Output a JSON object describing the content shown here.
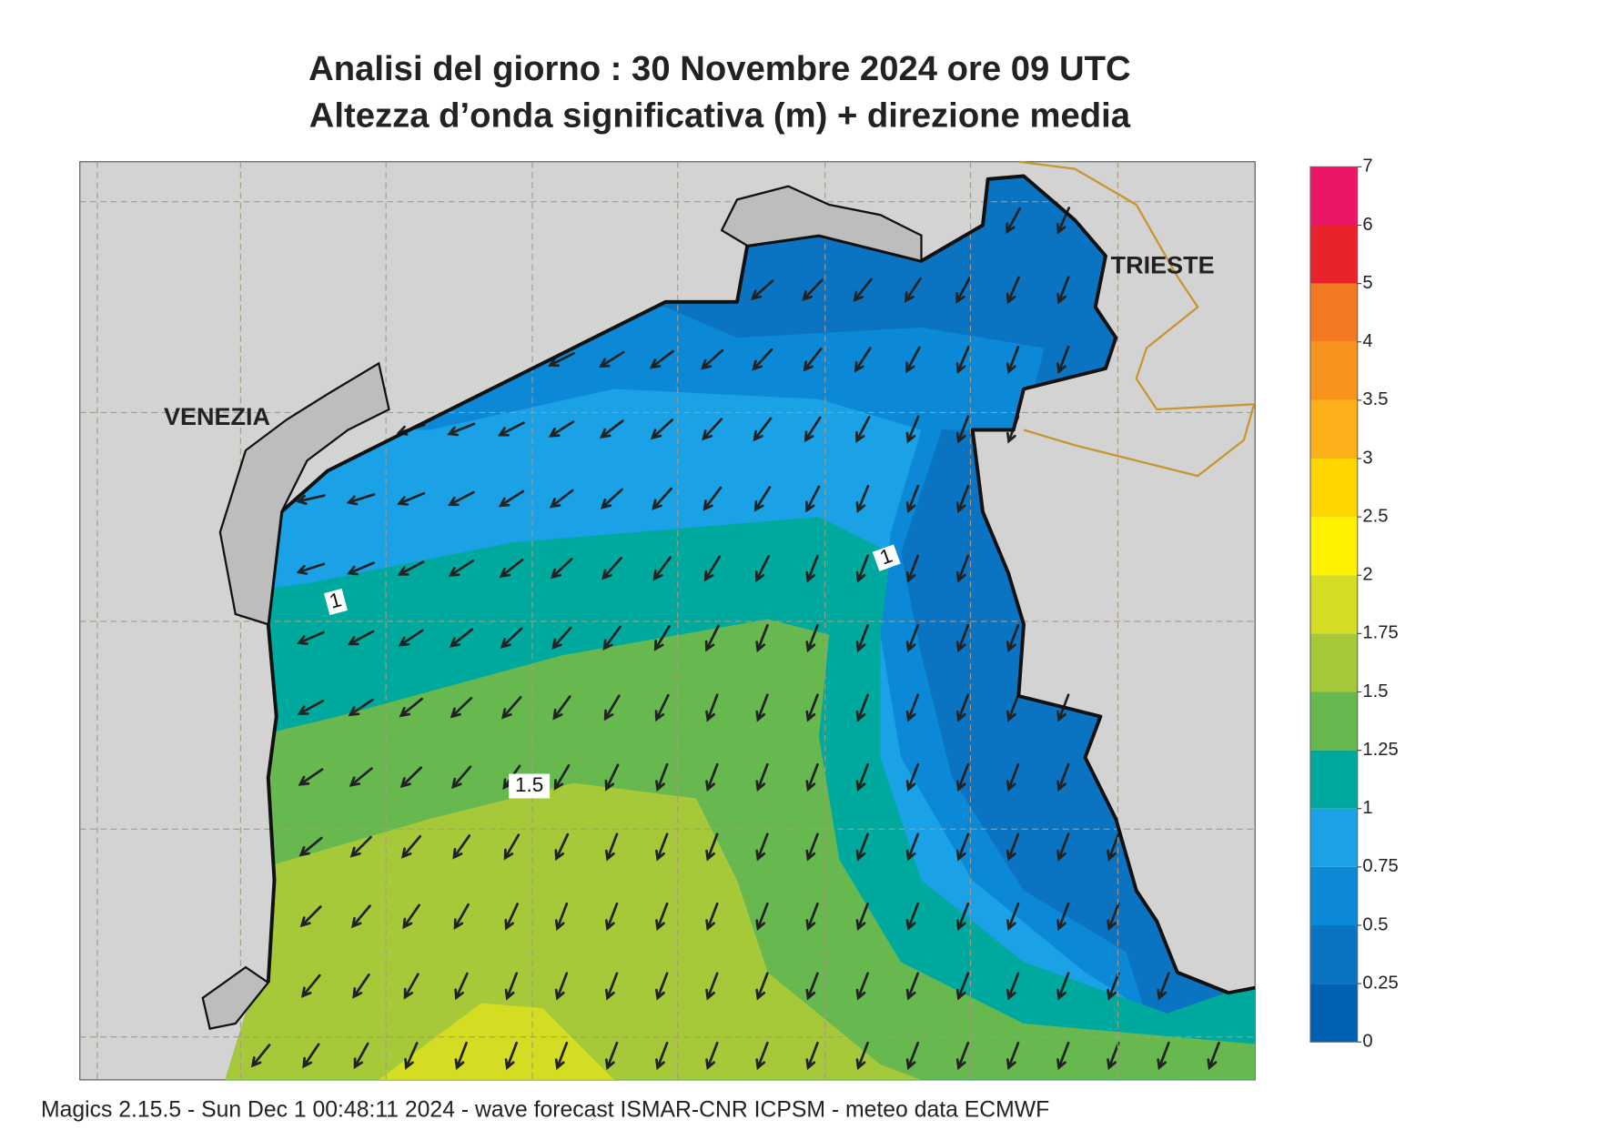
{
  "header": {
    "title": "Analisi del giorno :  30 Novembre  2024   ore 09 UTC",
    "subtitle": "Altezza d’onda significativa (m) + direzione media"
  },
  "map": {
    "places": [
      "VENEZIA",
      "TRIESTE"
    ],
    "contour_labels": [
      "1",
      "1",
      "1.5"
    ]
  },
  "colorbar": {
    "levels": [
      0,
      0.25,
      0.5,
      0.75,
      1,
      1.25,
      1.5,
      1.75,
      2,
      2.5,
      3,
      3.5,
      4,
      5,
      6,
      7
    ],
    "colors": [
      "#0061b2",
      "#0a73c2",
      "#0b89d6",
      "#1aa1e6",
      "#00a99d",
      "#66b84f",
      "#a6c93a",
      "#d4dd21",
      "#fff200",
      "#ffd500",
      "#fbb01a",
      "#f7941d",
      "#f37a22",
      "#e8232b",
      "#ec1669"
    ]
  },
  "footer": "Magics 2.15.5 - Sun Dec  1 00:48:11 2024 - wave forecast  ISMAR-CNR  ICPSM - meteo data    ECMWF"
}
